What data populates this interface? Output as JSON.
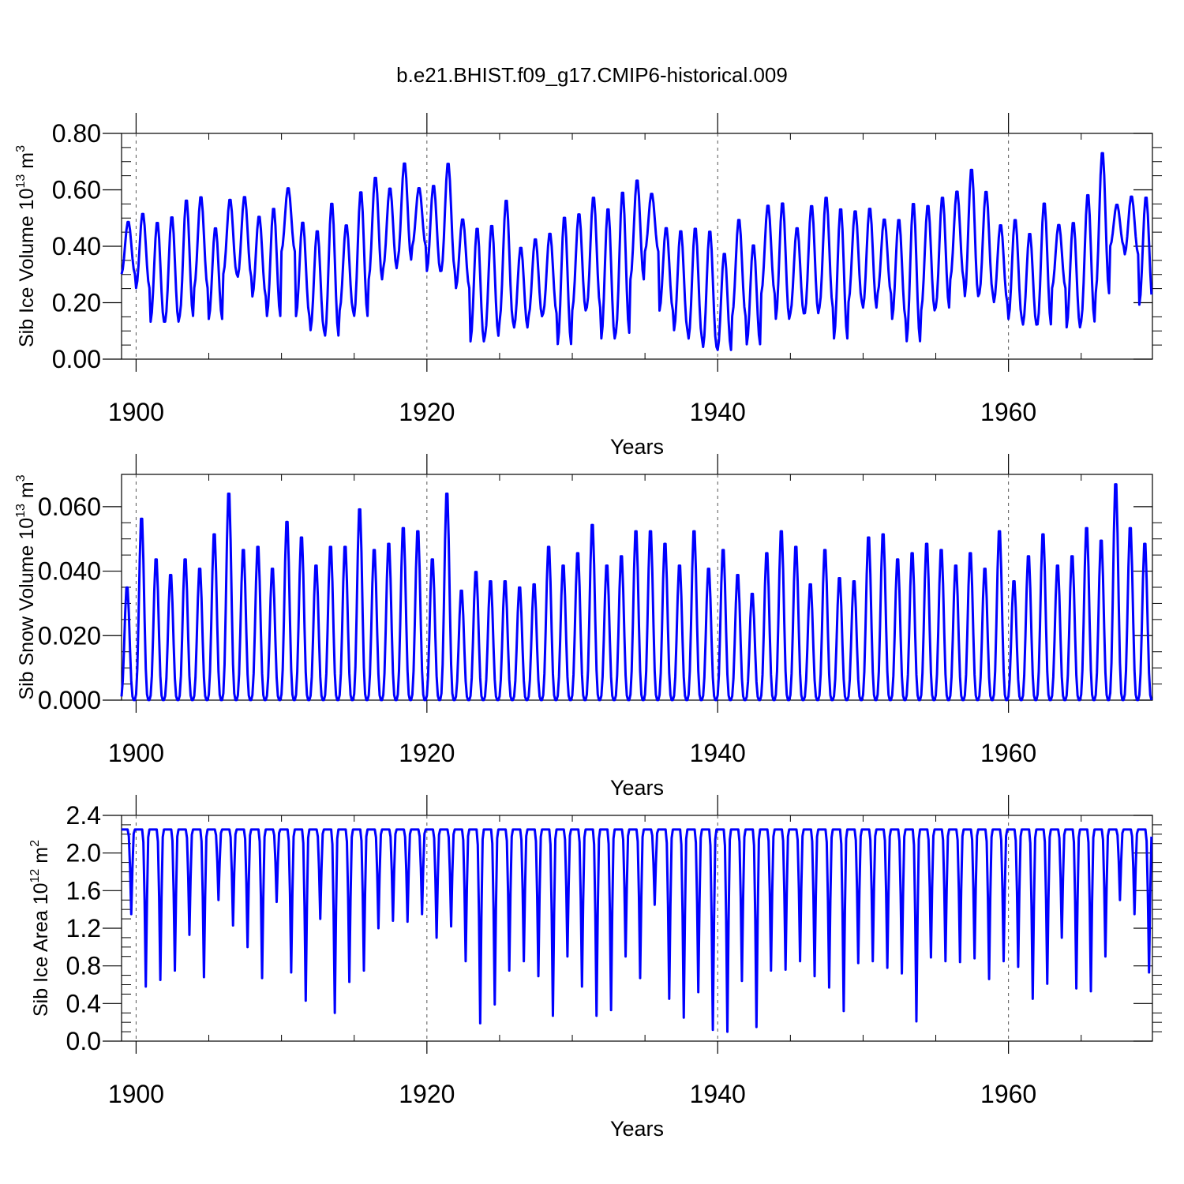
{
  "figure_title": "b.e21.BHIST.f09_g17.CMIP6-historical.009",
  "line_color": "#0000ff",
  "chart_data": [
    {
      "type": "line",
      "name": "ice-volume",
      "title": "",
      "xlabel": "Years",
      "ylabel": "Sib Ice Volume 10",
      "ylabel_exp": "13",
      "ylabel_unit": " m",
      "ylabel_unit_exp": "3",
      "xlim": [
        1899,
        1969.9
      ],
      "ylim": [
        0.0,
        0.8
      ],
      "x_ticks": [
        1900,
        1920,
        1940,
        1960
      ],
      "x_tick_labels": [
        "1900",
        "1920",
        "1940",
        "1960"
      ],
      "y_ticks": [
        0.0,
        0.2,
        0.4,
        0.6,
        0.8
      ],
      "y_tick_labels": [
        "0.00",
        "0.20",
        "0.40",
        "0.60",
        "0.80"
      ],
      "series": [
        {
          "name": "Sib Ice Volume",
          "start_year": 1899,
          "peak_months": [
            5,
            6
          ],
          "annual_max": [
            0.49,
            0.52,
            0.49,
            0.51,
            0.57,
            0.58,
            0.47,
            0.57,
            0.58,
            0.51,
            0.54,
            0.61,
            0.49,
            0.46,
            0.56,
            0.48,
            0.6,
            0.65,
            0.61,
            0.7,
            0.61,
            0.62,
            0.7,
            0.5,
            0.47,
            0.48,
            0.57,
            0.4,
            0.43,
            0.45,
            0.51,
            0.52,
            0.58,
            0.54,
            0.6,
            0.64,
            0.59,
            0.47,
            0.46,
            0.47,
            0.46,
            0.38,
            0.5,
            0.41,
            0.55,
            0.56,
            0.47,
            0.55,
            0.58,
            0.54,
            0.53,
            0.54,
            0.5,
            0.5,
            0.56,
            0.55,
            0.58,
            0.6,
            0.68,
            0.6,
            0.48,
            0.5,
            0.45,
            0.56,
            0.48,
            0.49,
            0.59,
            0.74,
            0.55,
            0.58,
            0.58
          ],
          "annual_min": [
            0.3,
            0.25,
            0.13,
            0.13,
            0.15,
            0.25,
            0.14,
            0.3,
            0.29,
            0.22,
            0.15,
            0.38,
            0.15,
            0.1,
            0.08,
            0.17,
            0.15,
            0.28,
            0.32,
            0.35,
            0.4,
            0.31,
            0.31,
            0.25,
            0.06,
            0.08,
            0.13,
            0.11,
            0.15,
            0.16,
            0.05,
            0.17,
            0.18,
            0.07,
            0.09,
            0.28,
            0.38,
            0.17,
            0.1,
            0.07,
            0.04,
            0.03,
            0.15,
            0.05,
            0.23,
            0.14,
            0.16,
            0.16,
            0.18,
            0.07,
            0.2,
            0.18,
            0.23,
            0.14,
            0.06,
            0.17,
            0.18,
            0.28,
            0.22,
            0.23,
            0.2,
            0.14,
            0.12,
            0.12,
            0.25,
            0.11,
            0.13,
            0.23,
            0.4,
            0.37,
            0.19
          ]
        }
      ]
    },
    {
      "type": "line",
      "name": "snow-volume",
      "title": "",
      "xlabel": "Years",
      "ylabel": "Sib Snow Volume 10",
      "ylabel_exp": "13",
      "ylabel_unit": " m",
      "ylabel_unit_exp": "3",
      "xlim": [
        1899,
        1969.9
      ],
      "ylim": [
        0.0,
        0.07
      ],
      "x_ticks": [
        1900,
        1920,
        1940,
        1960
      ],
      "x_tick_labels": [
        "1900",
        "1920",
        "1940",
        "1960"
      ],
      "y_ticks": [
        0.0,
        0.02,
        0.04,
        0.06
      ],
      "y_tick_labels": [
        "0.000",
        "0.020",
        "0.040",
        "0.060"
      ],
      "series": [
        {
          "name": "Sib Snow Volume",
          "start_year": 1899,
          "peak_months": [
            4,
            5
          ],
          "annual_max": [
            0.036,
            0.058,
            0.045,
            0.04,
            0.045,
            0.042,
            0.053,
            0.066,
            0.048,
            0.049,
            0.042,
            0.057,
            0.052,
            0.043,
            0.049,
            0.049,
            0.061,
            0.048,
            0.05,
            0.055,
            0.054,
            0.045,
            0.066,
            0.035,
            0.041,
            0.038,
            0.038,
            0.036,
            0.037,
            0.049,
            0.043,
            0.047,
            0.056,
            0.043,
            0.046,
            0.054,
            0.054,
            0.05,
            0.043,
            0.054,
            0.042,
            0.048,
            0.04,
            0.034,
            0.047,
            0.054,
            0.049,
            0.037,
            0.048,
            0.039,
            0.038,
            0.052,
            0.053,
            0.045,
            0.047,
            0.05,
            0.048,
            0.043,
            0.047,
            0.042,
            0.054,
            0.038,
            0.046,
            0.053,
            0.043,
            0.046,
            0.055,
            0.051,
            0.069,
            0.055,
            0.05
          ],
          "annual_min": [
            0.0,
            0.0,
            0.0,
            0.0,
            0.0,
            0.0,
            0.0,
            0.0,
            0.0,
            0.0,
            0.0,
            0.0,
            0.0,
            0.0,
            0.0,
            0.0,
            0.0,
            0.0,
            0.0,
            0.0,
            0.0,
            0.0,
            0.0,
            0.0,
            0.0,
            0.0,
            0.0,
            0.0,
            0.0,
            0.0,
            0.0,
            0.0,
            0.0,
            0.0,
            0.0,
            0.0,
            0.0,
            0.0,
            0.0,
            0.0,
            0.0,
            0.0,
            0.0,
            0.0,
            0.0,
            0.0,
            0.0,
            0.0,
            0.0,
            0.0,
            0.0,
            0.0,
            0.0,
            0.0,
            0.0,
            0.0,
            0.0,
            0.0,
            0.0,
            0.0,
            0.0,
            0.0,
            0.0,
            0.0,
            0.0,
            0.0,
            0.0,
            0.0,
            0.0,
            0.0,
            0.0
          ]
        }
      ]
    },
    {
      "type": "line",
      "name": "ice-area",
      "title": "",
      "xlabel": "Years",
      "ylabel": "Sib Ice Area 10",
      "ylabel_exp": "12",
      "ylabel_unit": " m",
      "ylabel_unit_exp": "2",
      "xlim": [
        1899,
        1969.9
      ],
      "ylim": [
        0.0,
        2.4
      ],
      "x_ticks": [
        1900,
        1920,
        1940,
        1960
      ],
      "x_tick_labels": [
        "1900",
        "1920",
        "1940",
        "1960"
      ],
      "y_ticks": [
        0.0,
        0.4,
        0.8,
        1.2,
        1.6,
        2.0,
        2.4
      ],
      "y_tick_labels": [
        "0.0",
        "0.4",
        "0.8",
        "1.2",
        "1.6",
        "2.0",
        "2.4"
      ],
      "series": [
        {
          "name": "Sib Ice Area",
          "start_year": 1899,
          "peak_months": [
            0,
            5
          ],
          "annual_max": [
            2.25,
            2.25,
            2.25,
            2.25,
            2.25,
            2.25,
            2.25,
            2.25,
            2.25,
            2.25,
            2.25,
            2.25,
            2.25,
            2.25,
            2.25,
            2.25,
            2.25,
            2.25,
            2.25,
            2.25,
            2.25,
            2.25,
            2.25,
            2.25,
            2.25,
            2.25,
            2.25,
            2.25,
            2.25,
            2.25,
            2.25,
            2.25,
            2.25,
            2.25,
            2.25,
            2.25,
            2.25,
            2.25,
            2.25,
            2.25,
            2.25,
            2.25,
            2.25,
            2.25,
            2.25,
            2.25,
            2.25,
            2.25,
            2.25,
            2.25,
            2.25,
            2.25,
            2.25,
            2.25,
            2.25,
            2.25,
            2.25,
            2.25,
            2.25,
            2.25,
            2.25,
            2.25,
            2.25,
            2.25,
            2.25,
            2.25,
            2.25,
            2.25,
            2.25,
            2.25,
            2.25
          ],
          "annual_min": [
            1.35,
            0.58,
            0.65,
            0.75,
            1.13,
            0.68,
            1.5,
            1.23,
            1.0,
            0.67,
            1.48,
            0.73,
            0.43,
            1.3,
            0.3,
            0.63,
            0.75,
            1.2,
            1.28,
            1.27,
            1.35,
            1.1,
            1.22,
            0.85,
            0.19,
            0.39,
            0.75,
            0.85,
            0.69,
            0.27,
            0.9,
            0.58,
            0.27,
            0.33,
            0.9,
            0.67,
            1.45,
            0.45,
            0.25,
            0.52,
            0.12,
            0.1,
            0.64,
            0.15,
            0.75,
            0.76,
            0.85,
            0.69,
            0.57,
            0.32,
            0.83,
            0.85,
            0.78,
            0.72,
            0.21,
            0.89,
            0.85,
            0.84,
            0.88,
            0.66,
            0.85,
            0.79,
            0.45,
            0.61,
            1.1,
            0.56,
            0.53,
            0.9,
            1.5,
            1.35,
            0.73
          ]
        }
      ]
    }
  ]
}
